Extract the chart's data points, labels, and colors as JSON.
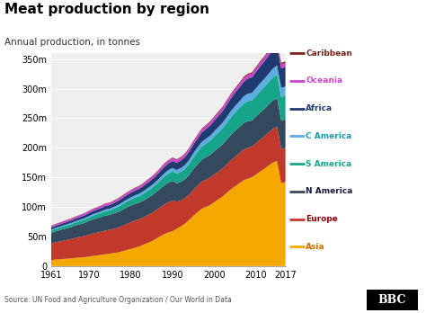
{
  "title": "Meat production by region",
  "subtitle": "Annual production, in tonnes",
  "source": "Source: UN Food and Agriculture Organization / Our World in Data",
  "years": [
    1961,
    1962,
    1963,
    1964,
    1965,
    1966,
    1967,
    1968,
    1969,
    1970,
    1971,
    1972,
    1973,
    1974,
    1975,
    1976,
    1977,
    1978,
    1979,
    1980,
    1981,
    1982,
    1983,
    1984,
    1985,
    1986,
    1987,
    1988,
    1989,
    1990,
    1991,
    1992,
    1993,
    1994,
    1995,
    1996,
    1997,
    1998,
    1999,
    2000,
    2001,
    2002,
    2003,
    2004,
    2005,
    2006,
    2007,
    2008,
    2009,
    2010,
    2011,
    2012,
    2013,
    2014,
    2015,
    2016,
    2017
  ],
  "series": {
    "Asia": [
      10,
      11,
      11.5,
      12,
      12.5,
      13,
      14,
      14.5,
      15,
      16,
      17,
      18,
      19,
      20,
      21,
      22,
      23,
      25,
      27,
      29,
      31,
      33,
      36,
      39,
      42,
      46,
      50,
      54,
      57,
      59,
      63,
      67,
      72,
      78,
      85,
      91,
      97,
      100,
      103,
      108,
      113,
      118,
      124,
      130,
      135,
      140,
      145,
      148,
      150,
      155,
      160,
      165,
      170,
      175,
      178,
      140,
      142
    ],
    "Europe": [
      28,
      29,
      30,
      31,
      32,
      33,
      34,
      35,
      36,
      37,
      38,
      38.5,
      39,
      40,
      40.5,
      41,
      42,
      43,
      44,
      45,
      46,
      46,
      46,
      47,
      47,
      48,
      49,
      50,
      51,
      52,
      46,
      44,
      43,
      43,
      44,
      45,
      46,
      46,
      47,
      47,
      47,
      47,
      48,
      49,
      50,
      51,
      52,
      52,
      52,
      53,
      54,
      55,
      56,
      57,
      58,
      58,
      58
    ],
    "N America": [
      18,
      18.5,
      19,
      19.5,
      20,
      20.5,
      21,
      21.5,
      22,
      23,
      24,
      24.5,
      25,
      25.5,
      25,
      26,
      26.5,
      27,
      28,
      28,
      28,
      28,
      28.5,
      29,
      30,
      30.5,
      31,
      32,
      33,
      33,
      31,
      31.5,
      32,
      33,
      35,
      36,
      37,
      38,
      38,
      39,
      40,
      41,
      42,
      43,
      44,
      44,
      45,
      45,
      44,
      45,
      46,
      46,
      47,
      48,
      48,
      48,
      48
    ],
    "S America": [
      4,
      4.2,
      4.4,
      4.6,
      4.8,
      5,
      5.2,
      5.5,
      5.8,
      6,
      6.3,
      6.6,
      7,
      7.3,
      7.5,
      8,
      8.5,
      9,
      9.5,
      10,
      10.5,
      11,
      11.5,
      12,
      12.5,
      13,
      14,
      15,
      15.5,
      16,
      16.5,
      17,
      17.5,
      18.5,
      19.5,
      21,
      22,
      23,
      24,
      25,
      26,
      27,
      28.5,
      30,
      31,
      32,
      33,
      34,
      34,
      35,
      36,
      37,
      38,
      39,
      40,
      40,
      40
    ],
    "C America": [
      1.5,
      1.6,
      1.7,
      1.8,
      1.9,
      2,
      2.1,
      2.2,
      2.3,
      2.4,
      2.5,
      2.6,
      2.8,
      3,
      3.1,
      3.2,
      3.4,
      3.6,
      3.8,
      4,
      4.1,
      4.2,
      4.4,
      4.6,
      4.8,
      5,
      5.2,
      5.5,
      5.7,
      5.9,
      6,
      6.2,
      6.5,
      7,
      7.3,
      7.6,
      8,
      8.2,
      8.5,
      9,
      9.3,
      9.6,
      10,
      10.5,
      11,
      11.5,
      12,
      12.5,
      12.8,
      13,
      13.5,
      14,
      14.5,
      15,
      15.5,
      15.5,
      15.5
    ],
    "Africa": [
      3.5,
      3.6,
      3.8,
      3.9,
      4,
      4.2,
      4.4,
      4.5,
      4.7,
      5,
      5.2,
      5.4,
      5.6,
      5.9,
      6.1,
      6.4,
      6.7,
      7,
      7.3,
      7.6,
      8,
      8.3,
      8.7,
      9.1,
      9.5,
      9.9,
      10.3,
      10.8,
      11.2,
      11.7,
      12.2,
      12.7,
      13.3,
      13.9,
      14.5,
      15.1,
      15.8,
      16.5,
      17.2,
      18,
      18.8,
      19.6,
      20.5,
      21.5,
      22.5,
      23.5,
      24.5,
      25.5,
      26.5,
      27.5,
      28.5,
      29.5,
      30.5,
      31.5,
      33,
      33,
      33
    ],
    "Oceania": [
      2.5,
      2.6,
      2.7,
      2.8,
      2.9,
      3,
      3,
      3.1,
      3.2,
      3.3,
      3.4,
      3.4,
      3.5,
      3.5,
      3.5,
      3.6,
      3.7,
      3.8,
      3.9,
      4,
      4,
      4.1,
      4.2,
      4.3,
      4.4,
      4.5,
      4.6,
      4.7,
      4.7,
      4.8,
      4.8,
      4.9,
      5,
      5.1,
      5.2,
      5.3,
      5.4,
      5.5,
      5.6,
      5.7,
      5.8,
      5.9,
      6,
      6.1,
      6.2,
      6.3,
      6.4,
      6.5,
      6.5,
      6.6,
      6.7,
      6.8,
      6.9,
      7,
      7.1,
      7.1,
      7.1
    ],
    "Caribbean": [
      0.5,
      0.51,
      0.52,
      0.54,
      0.55,
      0.57,
      0.59,
      0.6,
      0.62,
      0.64,
      0.66,
      0.68,
      0.7,
      0.72,
      0.74,
      0.76,
      0.78,
      0.8,
      0.82,
      0.85,
      0.87,
      0.9,
      0.92,
      0.95,
      0.97,
      1,
      1.03,
      1.06,
      1.09,
      1.12,
      1.15,
      1.18,
      1.21,
      1.25,
      1.28,
      1.32,
      1.35,
      1.39,
      1.43,
      1.47,
      1.51,
      1.55,
      1.59,
      1.64,
      1.68,
      1.73,
      1.78,
      1.83,
      1.88,
      1.93,
      1.99,
      2.04,
      2.1,
      2.16,
      2.22,
      2.25,
      2.28
    ]
  },
  "colors": {
    "Asia": "#f5a800",
    "Europe": "#c0392b",
    "N America": "#34495e",
    "S America": "#17a589",
    "C America": "#5dade2",
    "Africa": "#1f3a6e",
    "Oceania": "#cc44cc",
    "Caribbean": "#7b241c"
  },
  "legend_text_colors": {
    "Caribbean": "#7b241c",
    "Oceania": "#cc44cc",
    "Africa": "#1f3a6e",
    "C America": "#1a9aaa",
    "S America": "#17a589",
    "N America": "#1a1a3e",
    "Europe": "#8b0000",
    "Asia": "#c87000"
  },
  "yticks": [
    0,
    50,
    100,
    150,
    200,
    250,
    300,
    350
  ],
  "xticks": [
    1961,
    1970,
    1980,
    1990,
    2000,
    2010,
    2017
  ],
  "ylim": [
    0,
    360
  ],
  "background_color": "#ffffff",
  "plot_background": "#efefef"
}
